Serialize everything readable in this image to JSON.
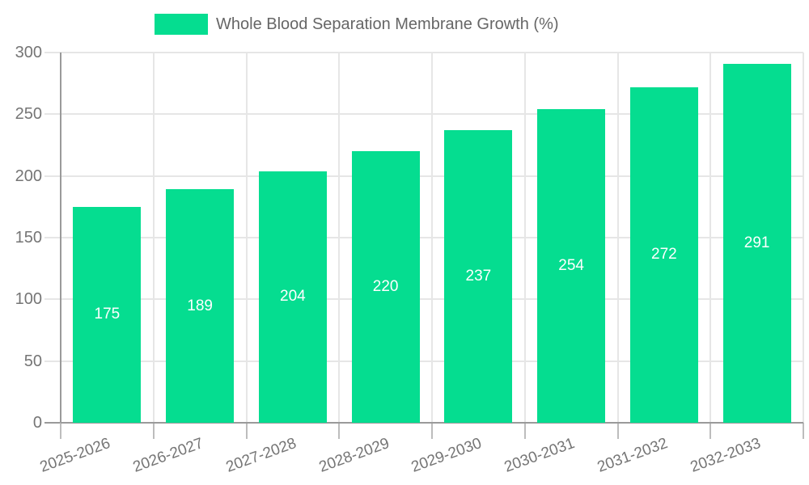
{
  "legend": {
    "label": "Whole Blood Separation Membrane Growth (%)"
  },
  "chart_data": {
    "type": "bar",
    "categories": [
      "2025-2026",
      "2026-2027",
      "2027-2028",
      "2028-2029",
      "2029-2030",
      "2030-2031",
      "2031-2032",
      "2032-2033"
    ],
    "values": [
      175,
      189,
      204,
      220,
      237,
      254,
      272,
      291
    ],
    "title": "Whole Blood Separation Membrane Growth (%)",
    "xlabel": "",
    "ylabel": "",
    "ylim": [
      0,
      300
    ],
    "yticks": [
      0,
      50,
      100,
      150,
      200,
      250,
      300
    ],
    "grid": true,
    "legend_position": "top",
    "bar_color": "#05DD90",
    "value_label_color": "#ffffff",
    "grid_color": "#e6e6e6",
    "axis_color": "#9a9a9a",
    "tick_label_color": "#757575",
    "legend_text_color": "#666666"
  }
}
